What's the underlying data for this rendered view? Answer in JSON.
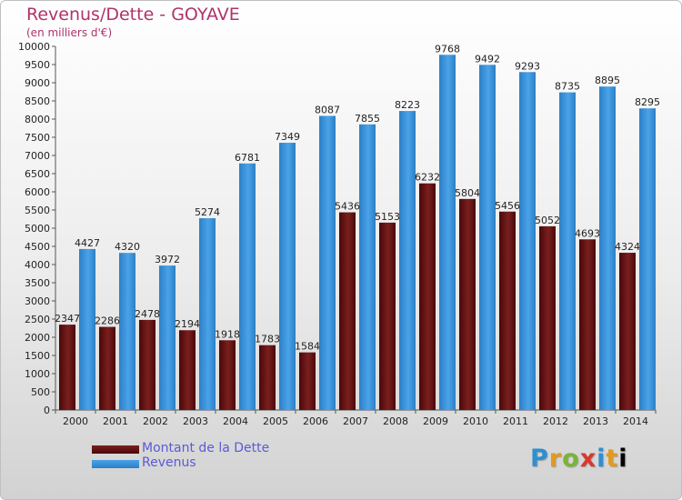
{
  "header": {
    "title": "Revenus/Dette - GOYAVE",
    "subtitle": "(en milliers d'€)"
  },
  "colors": {
    "debt": "#7a1f1f",
    "debt_dark": "#4a0808",
    "revenue": "#4aa3e8",
    "revenue_dark": "#2c7fc6"
  },
  "chart_data": {
    "type": "bar",
    "categories": [
      "2000",
      "2001",
      "2002",
      "2003",
      "2004",
      "2005",
      "2006",
      "2007",
      "2008",
      "2009",
      "2010",
      "2011",
      "2012",
      "2013",
      "2014"
    ],
    "series": [
      {
        "name": "Montant de la Dette",
        "values": [
          2347,
          2286,
          2478,
          2194,
          1918,
          1783,
          1584,
          5436,
          5153,
          6232,
          5804,
          5456,
          5052,
          4693,
          4324
        ],
        "labels": [
          "2347",
          "2286",
          "2478",
          "2194",
          "1918",
          "1783",
          "1584",
          "5436",
          "5153",
          "6232",
          "5804",
          "5456",
          "5052",
          "4693",
          "4324"
        ]
      },
      {
        "name": "Revenus",
        "values": [
          4427,
          4320,
          3972,
          5274,
          6781,
          7349,
          8087,
          7855,
          8223,
          9768,
          9492,
          9293,
          8735,
          8895,
          8295
        ],
        "labels": [
          "4427",
          "4320",
          "3972",
          "5274",
          "6781",
          "7349",
          "8087",
          "7855",
          "8223",
          "9768",
          "9492",
          "9293",
          "8735",
          "8895",
          "8295"
        ]
      }
    ],
    "ylim": [
      0,
      10000
    ],
    "ytick_step": 500,
    "grid": false,
    "legend_position": "bottom-left"
  },
  "branding": {
    "logo_letters": [
      "P",
      "r",
      "o",
      "x",
      "i",
      "t",
      "i"
    ]
  }
}
